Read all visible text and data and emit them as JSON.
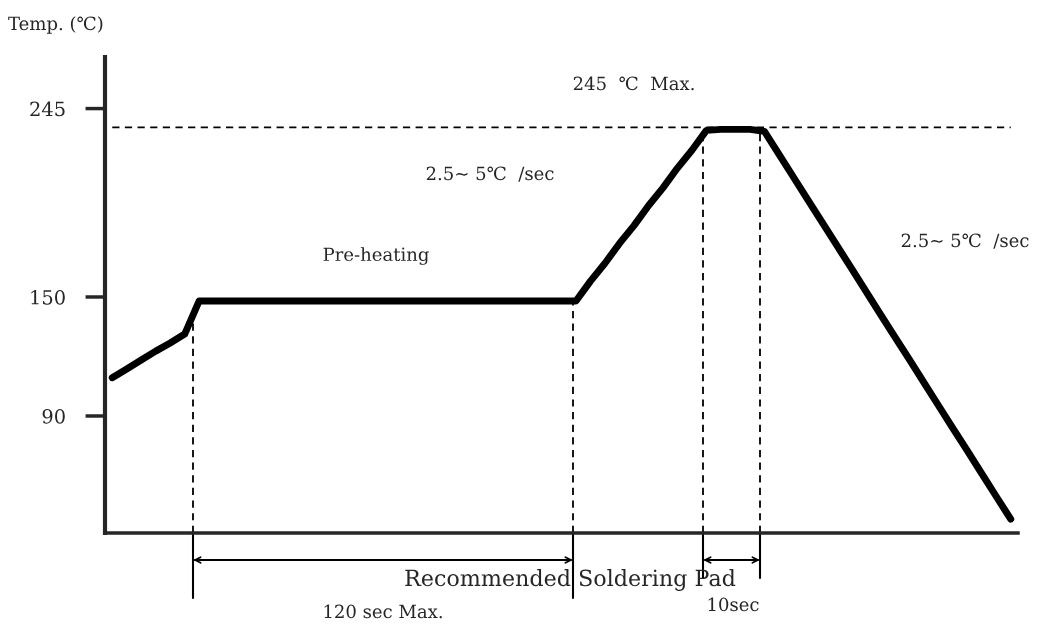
{
  "chart_data": {
    "type": "line",
    "ylabel": "Temp. (℃)",
    "categories": [
      null,
      null,
      null,
      null,
      null,
      null,
      null,
      null,
      null,
      null,
      null,
      null,
      null,
      null,
      null,
      null,
      null,
      null,
      null,
      null,
      null,
      null,
      null,
      null,
      null,
      null,
      null,
      null,
      null,
      null,
      null,
      null,
      null,
      null,
      null,
      null,
      null,
      null,
      null,
      null,
      null,
      null,
      null,
      null,
      null,
      null,
      null,
      null,
      null,
      null,
      null,
      null,
      null,
      null,
      null,
      null,
      null,
      null,
      null,
      null,
      null,
      null,
      null
    ],
    "series": [
      {
        "color": "#000000",
        "values": [
          109.3,
          113.7,
          118.2,
          122.7,
          126.8,
          131.3,
          148,
          148,
          148,
          148,
          148,
          148,
          148,
          148,
          148,
          148,
          148,
          148,
          148,
          148,
          148,
          148,
          148,
          148,
          148,
          148,
          148,
          148,
          148,
          148,
          148,
          148,
          148,
          158,
          167,
          177,
          186,
          196,
          205,
          215,
          224,
          234,
          234.5,
          234.5,
          234.5,
          233.5,
          222,
          210.5,
          199,
          187.5,
          176,
          164.5,
          153,
          141.4,
          129.9,
          118.5,
          107,
          95.4,
          83.9,
          72.5,
          60.9,
          49.4,
          38
        ]
      }
    ],
    "ylim": [
      31,
      271
    ],
    "yticks": [
      90,
      150,
      245
    ],
    "tick_labels": "y",
    "grid": false,
    "legend": false,
    "marker": "none",
    "line_style": "solid",
    "ref_lines": [
      {
        "axis": "y",
        "value": 235.5,
        "line_style": "dashed",
        "color": "#000000"
      }
    ],
    "annotations": [
      "Pre-heating",
      "2.5~ 5℃  /sec",
      "245  ℃  Max.",
      "2.5~ 5℃  /sec",
      "Recommended Soldering Pad",
      "120 sec Max.",
      "10sec"
    ]
  }
}
